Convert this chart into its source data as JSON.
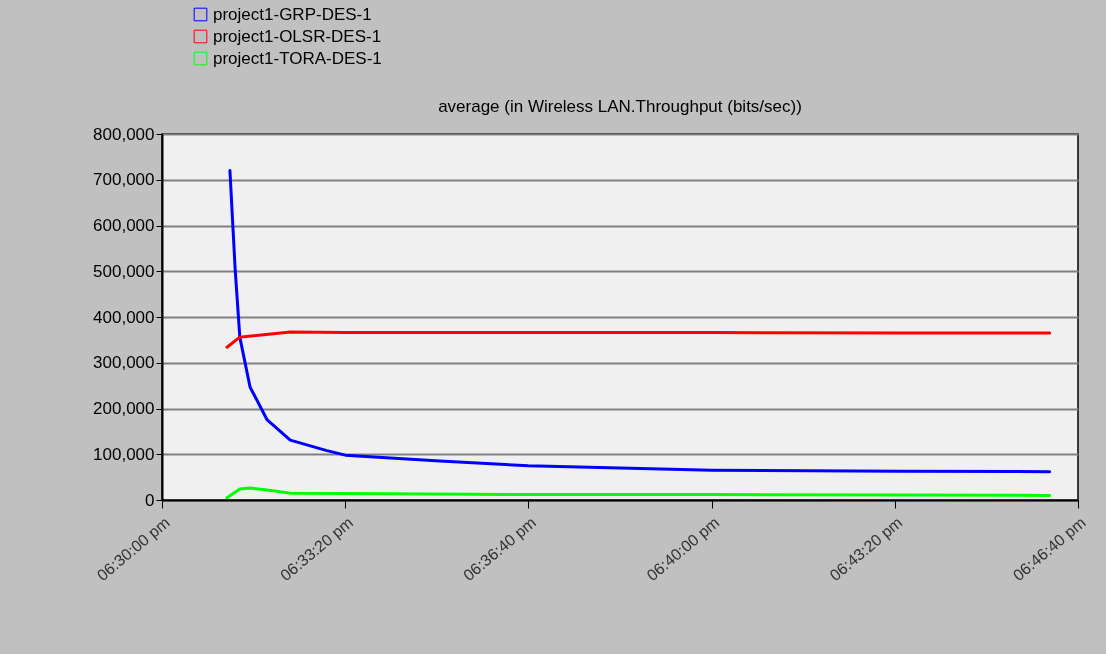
{
  "chart_data": {
    "type": "line",
    "title": "average (in Wireless LAN.Throughput (bits/sec))",
    "xlim": [
      18.5,
      18.7778
    ],
    "xticks": [
      {
        "value": 18.5,
        "label": "06:30:00 pm"
      },
      {
        "value": 18.5556,
        "label": "06:33:20 pm"
      },
      {
        "value": 18.6111,
        "label": "06:36:40 pm"
      },
      {
        "value": 18.6667,
        "label": "06:40:00 pm"
      },
      {
        "value": 18.7222,
        "label": "06:43:20 pm"
      },
      {
        "value": 18.7778,
        "label": "06:46:40 pm"
      }
    ],
    "ylim": [
      0,
      800000
    ],
    "yticks": [
      {
        "value": 0,
        "label": "0"
      },
      {
        "value": 100000,
        "label": "100,000"
      },
      {
        "value": 200000,
        "label": "200,000"
      },
      {
        "value": 300000,
        "label": "300,000"
      },
      {
        "value": 400000,
        "label": "400,000"
      },
      {
        "value": 500000,
        "label": "500,000"
      },
      {
        "value": 600000,
        "label": "600,000"
      },
      {
        "value": 700000,
        "label": "700,000"
      },
      {
        "value": 800000,
        "label": "800,000"
      }
    ],
    "grid": "y",
    "legend": "top left",
    "series": [
      {
        "name": "project1-GRP-DES-1",
        "color": "#0000ff",
        "x": [
          18.5206,
          18.5222,
          18.5236,
          18.5267,
          18.5319,
          18.5389,
          18.55,
          18.5556,
          18.5842,
          18.6111,
          18.6667,
          18.7239,
          18.7692
        ],
        "values": [
          720000,
          503000,
          356000,
          247000,
          175000,
          131000,
          108000,
          98000,
          85000,
          75000,
          65000,
          63000,
          62000
        ]
      },
      {
        "name": "project1-OLSR-DES-1",
        "color": "#ff0000",
        "x": [
          18.5197,
          18.5236,
          18.5389,
          18.5556,
          18.6111,
          18.6667,
          18.7239,
          18.7692
        ],
        "values": [
          334000,
          356000,
          367000,
          366000,
          366000,
          366000,
          365000,
          365000
        ]
      },
      {
        "name": "project1-TORA-DES-1",
        "color": "#00ff00",
        "x": [
          18.5197,
          18.5236,
          18.5267,
          18.5319,
          18.5389,
          18.5556,
          18.6111,
          18.6667,
          18.7239,
          18.7692
        ],
        "values": [
          5000,
          24000,
          26000,
          22000,
          15000,
          14000,
          12000,
          12000,
          11000,
          10000
        ]
      }
    ]
  }
}
